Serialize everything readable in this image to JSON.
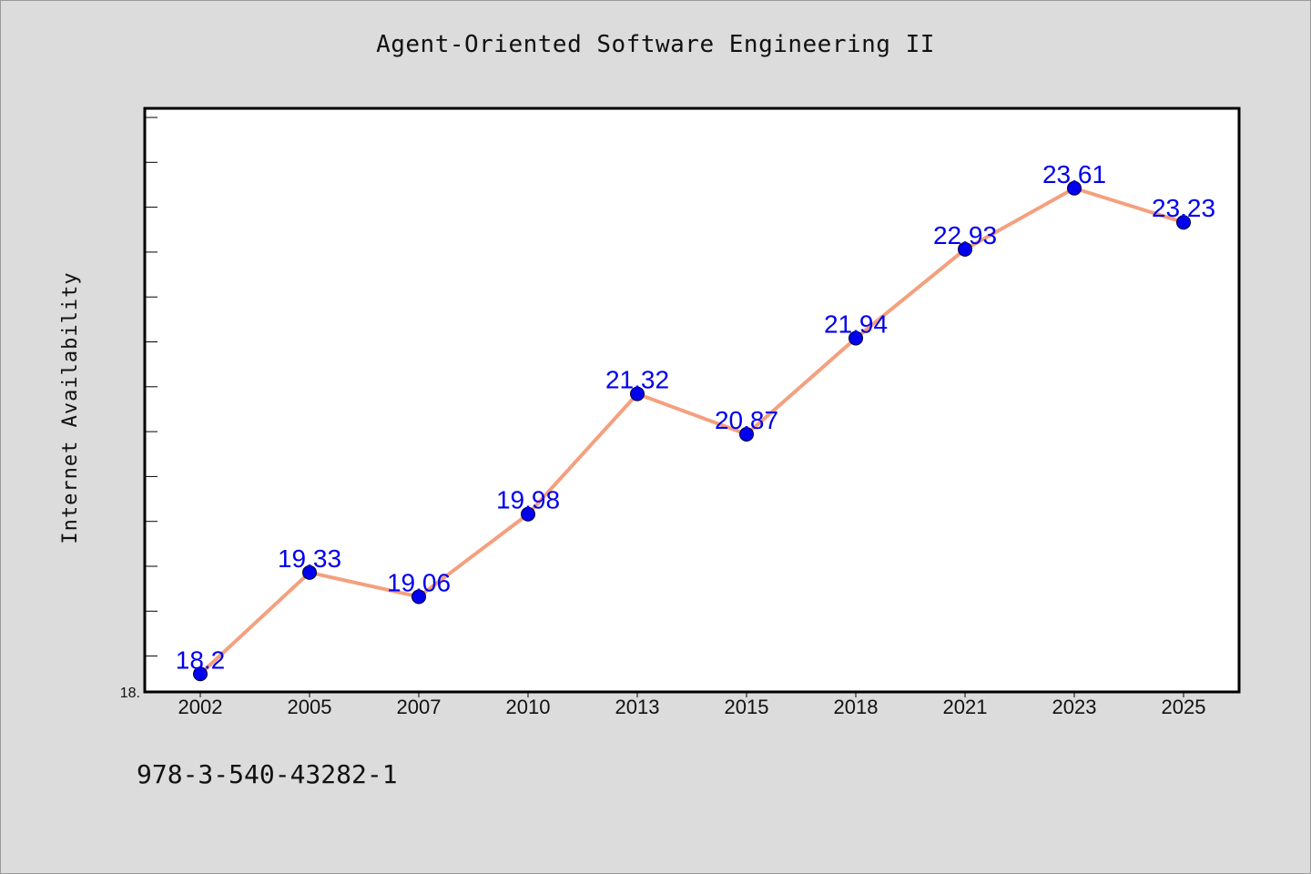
{
  "chart_data": {
    "type": "line",
    "title": "Agent-Oriented Software Engineering II",
    "xlabel": "",
    "ylabel": "Internet Availability",
    "categories": [
      "2002",
      "2005",
      "2007",
      "2010",
      "2013",
      "2015",
      "2018",
      "2021",
      "2023",
      "2025"
    ],
    "series": [
      {
        "values": [
          18.2,
          19.33,
          19.06,
          19.98,
          21.32,
          20.87,
          21.94,
          22.93,
          23.61,
          23.23
        ],
        "labels": [
          "18.2",
          "19.33",
          "19.06",
          "19.98",
          "21.32",
          "20.87",
          "21.94",
          "22.93",
          "23.61",
          "23.23"
        ]
      }
    ],
    "y_tick_label": "18.",
    "ylim": [
      18.0,
      24.5
    ],
    "grid": false,
    "line_color": "#f4a07e",
    "marker_color": "#0000ee",
    "label_color": "#0000ee"
  },
  "footer": {
    "text": "978-3-540-43282-1"
  }
}
